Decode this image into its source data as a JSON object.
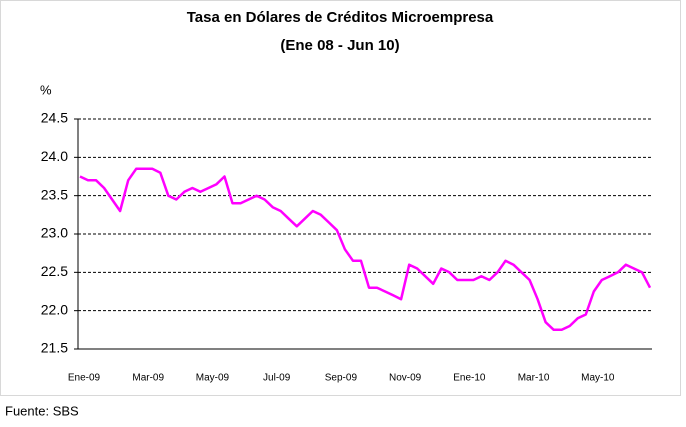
{
  "chart_data": {
    "type": "line",
    "title": "Tasa en Dólares de Créditos Microempresa",
    "subtitle": "(Ene 08 - Jun 10)",
    "y_label": "%",
    "source": "Fuente: SBS",
    "categories": [
      "Ene-09",
      null,
      null,
      null,
      null,
      null,
      null,
      null,
      "Mar-09",
      null,
      null,
      null,
      null,
      null,
      null,
      null,
      "May-09",
      null,
      null,
      null,
      null,
      null,
      null,
      null,
      "Jul-09",
      null,
      null,
      null,
      null,
      null,
      null,
      null,
      "Sep-09",
      null,
      null,
      null,
      null,
      null,
      null,
      null,
      "Nov-09",
      null,
      null,
      null,
      null,
      null,
      null,
      null,
      "Ene-10",
      null,
      null,
      null,
      null,
      null,
      null,
      null,
      "Mar-10",
      null,
      null,
      null,
      null,
      null,
      null,
      null,
      "May-10",
      null,
      null,
      null,
      null,
      null,
      null,
      null
    ],
    "values": [
      23.75,
      23.7,
      23.7,
      23.6,
      23.45,
      23.3,
      23.7,
      23.85,
      23.85,
      23.85,
      23.8,
      23.5,
      23.45,
      23.55,
      23.6,
      23.55,
      23.6,
      23.65,
      23.75,
      23.4,
      23.4,
      23.45,
      23.5,
      23.45,
      23.35,
      23.3,
      23.2,
      23.1,
      23.2,
      23.3,
      23.25,
      23.15,
      23.05,
      22.8,
      22.65,
      22.65,
      22.3,
      22.3,
      22.25,
      22.2,
      22.15,
      22.6,
      22.55,
      22.45,
      22.35,
      22.55,
      22.5,
      22.4,
      22.4,
      22.4,
      22.45,
      22.4,
      22.5,
      22.65,
      22.6,
      22.5,
      22.4,
      22.15,
      21.85,
      21.75,
      21.75,
      21.8,
      21.9,
      21.95,
      22.25,
      22.4,
      22.45,
      22.5,
      22.6,
      22.55,
      22.5,
      22.3
    ],
    "color": "#ff00ff",
    "ylim": [
      21.5,
      24.5
    ],
    "yticks": [
      21.5,
      {
        "value": 22,
        "label": "22.0"
      },
      22.5,
      {
        "value": 23,
        "label": "23.0"
      },
      23.5,
      {
        "value": 24,
        "label": "24.0"
      },
      24.5
    ],
    "grid": true
  }
}
